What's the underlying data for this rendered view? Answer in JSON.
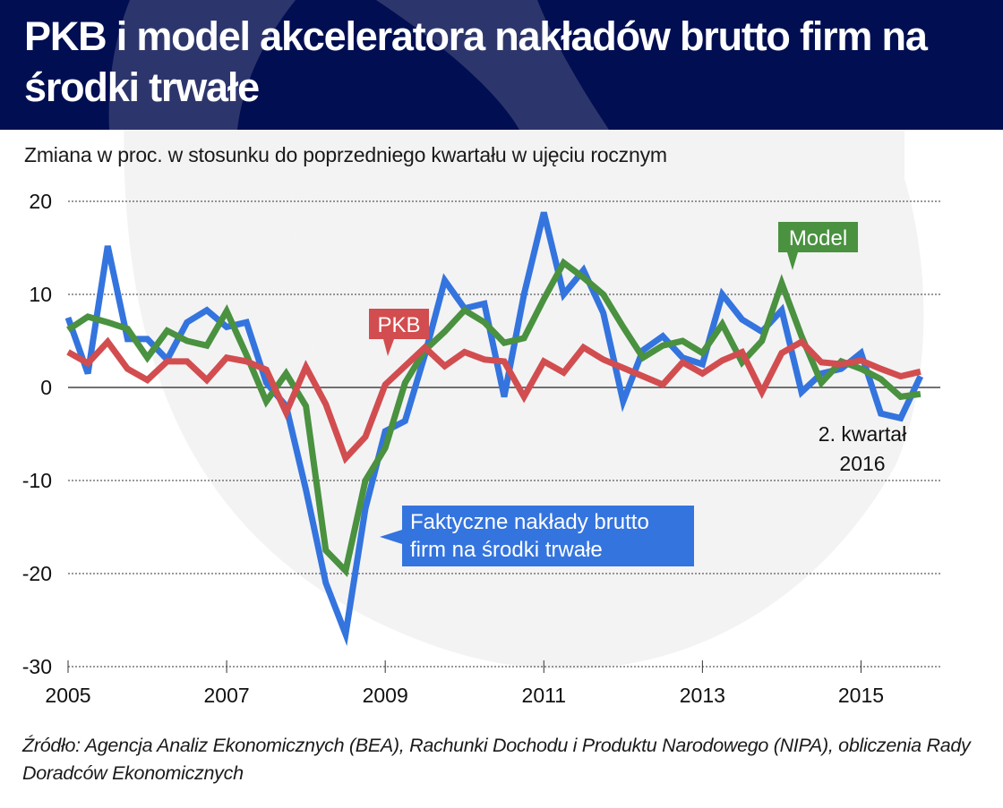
{
  "header": {
    "title": "PKB i model akceleratora nakładów brutto firm na środki trwałe"
  },
  "subtitle": "Zmiana w proc. w stosunku do poprzedniego kwartału w ujęciu rocznym",
  "source": "Źródło: Agencja Analiz Ekonomicznych (BEA), Rachunki Dochodu i Produktu Narodowego (NIPA), obliczenia Rady Doradców Ekonomicznych",
  "colors": {
    "header_bg": "#010f52",
    "actual": "#3474de",
    "model": "#4a9140",
    "gdp": "#d24d4f"
  },
  "chart_data": {
    "type": "line",
    "title": "PKB i model akceleratora nakładów brutto firm na środki trwałe",
    "subtitle": "Zmiana w proc. w stosunku do poprzedniego kwartału w ujęciu rocznym",
    "xlabel": "",
    "ylabel": "",
    "x_start": "2005Q1",
    "x_end": "2015Q4",
    "frequency": "quarterly",
    "xlim": [
      2005,
      2016
    ],
    "ylim": [
      -30,
      20
    ],
    "yticks": [
      20,
      10,
      0,
      -10,
      -20,
      -30
    ],
    "ytick_labels": [
      "20",
      "10",
      "0",
      "-10",
      "-20",
      "-30"
    ],
    "xticks": [
      2005,
      2007,
      2009,
      2011,
      2013,
      2015
    ],
    "xtick_labels": [
      "2005",
      "2007",
      "2009",
      "2011",
      "2013",
      "2015"
    ],
    "grid": "horizontal-dotted",
    "series": [
      {
        "name": "Faktyczne nakłady brutto firm na środki trwałe",
        "key": "actual",
        "values": [
          7.5,
          1.5,
          15.2,
          5.2,
          5.2,
          3.0,
          7.0,
          8.3,
          6.5,
          7.0,
          0.5,
          -2.0,
          -11.0,
          -21.0,
          -26.5,
          -13.0,
          -4.7,
          -3.6,
          3.5,
          11.5,
          8.5,
          9.0,
          -1.0,
          10.0,
          18.8,
          10.0,
          12.6,
          8.0,
          -1.5,
          4.0,
          5.5,
          3.2,
          2.5,
          10.0,
          7.3,
          6.0,
          8.3,
          -0.5,
          1.5,
          2.0,
          3.7,
          -2.8,
          -3.3,
          1.2
        ]
      },
      {
        "name": "Model",
        "key": "model",
        "values": [
          6.2,
          7.6,
          7.0,
          6.3,
          3.2,
          6.1,
          5.0,
          4.5,
          8.2,
          3.5,
          -1.5,
          1.5,
          -2.0,
          -17.5,
          -19.7,
          -10.0,
          -6.5,
          0.5,
          4.0,
          6.0,
          8.3,
          7.0,
          4.8,
          5.3,
          9.5,
          13.4,
          11.8,
          10.0,
          6.5,
          3.2,
          4.5,
          5.0,
          3.7,
          6.8,
          2.7,
          5.0,
          11.2,
          5.5,
          0.5,
          2.8,
          2.0,
          0.9,
          -1.0,
          -0.7
        ]
      },
      {
        "name": "PKB",
        "key": "gdp",
        "values": [
          3.8,
          2.6,
          4.9,
          2.0,
          0.8,
          2.8,
          2.8,
          0.8,
          3.2,
          2.8,
          1.9,
          -2.7,
          2.2,
          -1.8,
          -7.6,
          -5.3,
          0.3,
          2.3,
          4.3,
          2.3,
          3.8,
          3.0,
          2.8,
          -1.0,
          2.8,
          1.6,
          4.3,
          3.0,
          2.1,
          1.2,
          0.3,
          2.7,
          1.5,
          2.9,
          3.8,
          -0.5,
          3.7,
          4.9,
          2.7,
          2.5,
          2.9,
          2.0,
          1.2,
          1.7
        ]
      }
    ],
    "callouts": [
      {
        "series": "gdp",
        "label": "PKB"
      },
      {
        "series": "model",
        "label": "Model"
      },
      {
        "series": "actual",
        "label_lines": [
          "Faktyczne nakłady brutto",
          "firm na środki trwałe"
        ]
      }
    ],
    "annotation_lines": [
      "2. kwartał",
      "2016"
    ]
  }
}
